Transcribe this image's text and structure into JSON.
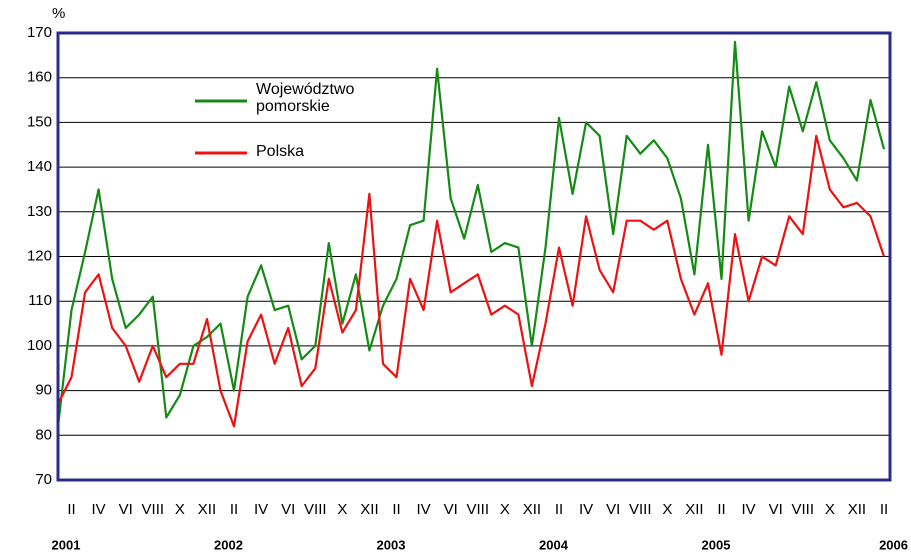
{
  "chart_data": {
    "type": "line",
    "y_label": "%",
    "categories": [
      null,
      "II",
      null,
      "IV",
      null,
      "VI",
      null,
      "VIII",
      null,
      "X",
      null,
      "XII",
      null,
      "II",
      null,
      "IV",
      null,
      "VI",
      null,
      "VIII",
      null,
      "X",
      null,
      "XII",
      null,
      "II",
      null,
      "IV",
      null,
      "VI",
      null,
      "VIII",
      null,
      "X",
      null,
      "XII",
      null,
      "II",
      null,
      "IV",
      null,
      "VI",
      null,
      "VIII",
      null,
      "X",
      null,
      "XII",
      null,
      "II",
      null,
      "IV",
      null,
      "VI",
      null,
      "VIII",
      null,
      "X",
      null,
      "XII",
      null,
      "II"
    ],
    "year_labels": [
      "2001",
      "2002",
      "2003",
      "2004",
      "2005",
      "2006"
    ],
    "series": [
      {
        "name": "Województwo pomorskie",
        "color": "#158a15",
        "values": [
          82,
          108,
          121,
          135,
          115,
          104,
          107,
          111,
          84,
          89,
          100,
          102,
          105,
          90,
          111,
          118,
          108,
          109,
          97,
          100,
          123,
          105,
          116,
          99,
          109,
          115,
          127,
          128,
          162,
          133,
          124,
          136,
          121,
          123,
          122,
          100,
          122,
          151,
          134,
          150,
          147,
          125,
          147,
          143,
          146,
          142,
          133,
          116,
          145,
          115,
          168,
          128,
          148,
          140,
          158,
          148,
          159,
          146,
          142,
          137,
          155,
          144
        ]
      },
      {
        "name": "Polska",
        "color": "#ee1111",
        "values": [
          87,
          93,
          112,
          116,
          104,
          100,
          92,
          100,
          93,
          96,
          96,
          106,
          90,
          82,
          101,
          107,
          96,
          104,
          91,
          95,
          115,
          103,
          108,
          134,
          96,
          93,
          115,
          108,
          128,
          112,
          114,
          116,
          107,
          109,
          107,
          91,
          105,
          122,
          109,
          129,
          117,
          112,
          128,
          128,
          126,
          128,
          115,
          107,
          114,
          98,
          125,
          110,
          120,
          118,
          129,
          125,
          147,
          135,
          131,
          132,
          129,
          120
        ]
      }
    ],
    "ylim": [
      70,
      170
    ],
    "yticks": [
      70,
      80,
      90,
      100,
      110,
      120,
      130,
      140,
      150,
      160,
      170
    ],
    "grid": true
  }
}
